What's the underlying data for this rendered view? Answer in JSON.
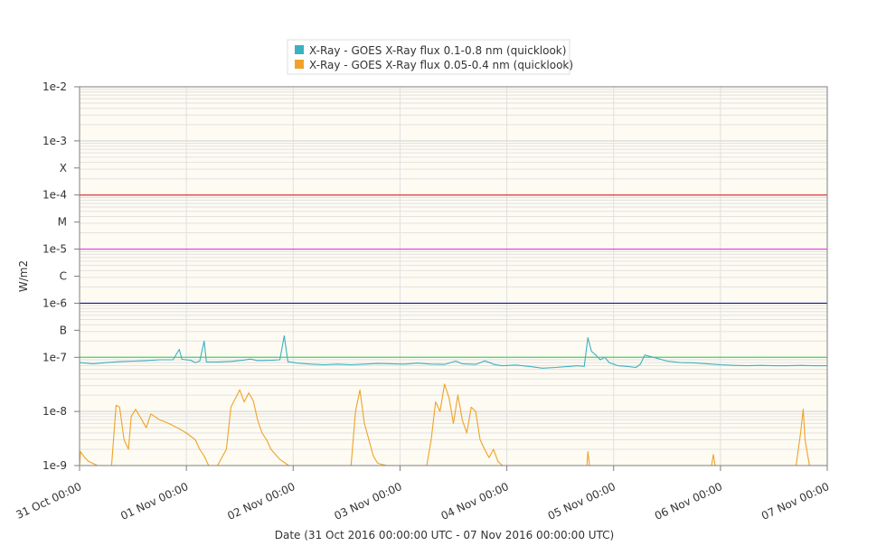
{
  "chart_data": {
    "type": "line",
    "xlabel": "Date (31 Oct 2016 00:00:00 UTC - 07 Nov 2016 00:00:00 UTC)",
    "ylabel": "W/m2",
    "y_scale": "log",
    "ylim": [
      1e-09,
      0.01
    ],
    "xlim": [
      "2016-10-31 00:00",
      "2016-11-07 00:00"
    ],
    "grid": true,
    "legend_position": "top-center",
    "plot_background": "#fdfbf2",
    "x_ticks": [
      {
        "x": "2016-10-31 00:00",
        "label": "31 Oct 00:00"
      },
      {
        "x": "2016-11-01 00:00",
        "label": "01 Nov 00:00"
      },
      {
        "x": "2016-11-02 00:00",
        "label": "02 Nov 00:00"
      },
      {
        "x": "2016-11-03 00:00",
        "label": "03 Nov 00:00"
      },
      {
        "x": "2016-11-04 00:00",
        "label": "04 Nov 00:00"
      },
      {
        "x": "2016-11-05 00:00",
        "label": "05 Nov 00:00"
      },
      {
        "x": "2016-11-06 00:00",
        "label": "06 Nov 00:00"
      },
      {
        "x": "2016-11-07 00:00",
        "label": "07 Nov 00:00"
      }
    ],
    "y_ticks": [
      {
        "y": 0.01,
        "label": "1e-2"
      },
      {
        "y": 0.001,
        "label": "1e-3"
      },
      {
        "y": 0.000316,
        "label": "X"
      },
      {
        "y": 0.0001,
        "label": "1e-4"
      },
      {
        "y": 3.16e-05,
        "label": "M"
      },
      {
        "y": 1e-05,
        "label": "1e-5"
      },
      {
        "y": 3.16e-06,
        "label": "C"
      },
      {
        "y": 1e-06,
        "label": "1e-6"
      },
      {
        "y": 3.16e-07,
        "label": "B"
      },
      {
        "y": 1e-07,
        "label": "1e-7"
      },
      {
        "y": 1e-08,
        "label": "1e-8"
      },
      {
        "y": 1e-09,
        "label": "1e-9"
      }
    ],
    "threshold_lines": [
      {
        "y": 0.0001,
        "color": "#d93a3a"
      },
      {
        "y": 1e-05,
        "color": "#e040e0"
      },
      {
        "y": 1e-06,
        "color": "#1a1a9e"
      },
      {
        "y": 1e-07,
        "color": "#49d36b"
      }
    ],
    "series": [
      {
        "name": "X-Ray - GOES X-Ray flux 0.1-0.8 nm (quicklook)",
        "color": "#3bb1c2",
        "points": [
          [
            "2016-10-31 00:00",
            8e-08
          ],
          [
            "2016-10-31 03:00",
            7.6e-08
          ],
          [
            "2016-10-31 06:00",
            8e-08
          ],
          [
            "2016-10-31 09:00",
            8.3e-08
          ],
          [
            "2016-10-31 12:00",
            8.5e-08
          ],
          [
            "2016-10-31 15:00",
            8.7e-08
          ],
          [
            "2016-10-31 18:00",
            9e-08
          ],
          [
            "2016-10-31 21:00",
            9e-08
          ],
          [
            "2016-10-31 22:24",
            1.4e-07
          ],
          [
            "2016-10-31 23:00",
            9.2e-08
          ],
          [
            "2016-11-01 01:00",
            8.8e-08
          ],
          [
            "2016-11-01 02:00",
            8e-08
          ],
          [
            "2016-11-01 03:00",
            8.5e-08
          ],
          [
            "2016-11-01 04:00",
            2e-07
          ],
          [
            "2016-11-01 04:30",
            8.2e-08
          ],
          [
            "2016-11-01 07:00",
            8.2e-08
          ],
          [
            "2016-11-01 10:00",
            8.4e-08
          ],
          [
            "2016-11-01 13:00",
            8.9e-08
          ],
          [
            "2016-11-01 14:24",
            9.3e-08
          ],
          [
            "2016-11-01 16:00",
            8.7e-08
          ],
          [
            "2016-11-01 19:00",
            8.8e-08
          ],
          [
            "2016-11-01 21:00",
            9e-08
          ],
          [
            "2016-11-01 22:00",
            2.5e-07
          ],
          [
            "2016-11-01 22:48",
            8.3e-08
          ],
          [
            "2016-11-02 01:00",
            7.8e-08
          ],
          [
            "2016-11-02 04:00",
            7.5e-08
          ],
          [
            "2016-11-02 07:00",
            7.3e-08
          ],
          [
            "2016-11-02 10:00",
            7.5e-08
          ],
          [
            "2016-11-02 13:00",
            7.3e-08
          ],
          [
            "2016-11-02 16:00",
            7.5e-08
          ],
          [
            "2016-11-02 19:00",
            7.7e-08
          ],
          [
            "2016-11-02 22:00",
            7.6e-08
          ],
          [
            "2016-11-03 01:00",
            7.5e-08
          ],
          [
            "2016-11-03 04:00",
            7.8e-08
          ],
          [
            "2016-11-03 07:00",
            7.5e-08
          ],
          [
            "2016-11-03 10:00",
            7.4e-08
          ],
          [
            "2016-11-03 12:30",
            8.5e-08
          ],
          [
            "2016-11-03 14:00",
            7.6e-08
          ],
          [
            "2016-11-03 17:00",
            7.4e-08
          ],
          [
            "2016-11-03 19:00",
            8.6e-08
          ],
          [
            "2016-11-03 20:30",
            7.8e-08
          ],
          [
            "2016-11-03 21:00",
            7.4e-08
          ],
          [
            "2016-11-03 23:00",
            7e-08
          ],
          [
            "2016-11-04 02:00",
            7.2e-08
          ],
          [
            "2016-11-04 05:00",
            6.8e-08
          ],
          [
            "2016-11-04 08:00",
            6.3e-08
          ],
          [
            "2016-11-04 11:00",
            6.5e-08
          ],
          [
            "2016-11-04 14:00",
            6.8e-08
          ],
          [
            "2016-11-04 16:00",
            7e-08
          ],
          [
            "2016-11-04 17:24",
            6.8e-08
          ],
          [
            "2016-11-04 18:12",
            2.3e-07
          ],
          [
            "2016-11-04 19:00",
            1.3e-07
          ],
          [
            "2016-11-04 20:00",
            1.1e-07
          ],
          [
            "2016-11-04 21:00",
            9e-08
          ],
          [
            "2016-11-04 22:00",
            1e-07
          ],
          [
            "2016-11-04 23:00",
            8e-08
          ],
          [
            "2016-11-05 01:00",
            7e-08
          ],
          [
            "2016-11-05 03:00",
            6.8e-08
          ],
          [
            "2016-11-05 05:00",
            6.5e-08
          ],
          [
            "2016-11-05 06:00",
            7.5e-08
          ],
          [
            "2016-11-05 07:00",
            1.1e-07
          ],
          [
            "2016-11-05 09:00",
            1e-07
          ],
          [
            "2016-11-05 12:00",
            8.5e-08
          ],
          [
            "2016-11-05 15:00",
            8e-08
          ],
          [
            "2016-11-05 18:00",
            7.9e-08
          ],
          [
            "2016-11-05 21:00",
            7.6e-08
          ],
          [
            "2016-11-06 00:00",
            7.3e-08
          ],
          [
            "2016-11-06 03:00",
            7.1e-08
          ],
          [
            "2016-11-06 06:00",
            7e-08
          ],
          [
            "2016-11-06 09:00",
            7.1e-08
          ],
          [
            "2016-11-06 12:00",
            7e-08
          ],
          [
            "2016-11-06 15:00",
            7e-08
          ],
          [
            "2016-11-06 18:00",
            7.1e-08
          ],
          [
            "2016-11-06 21:00",
            7e-08
          ],
          [
            "2016-11-07 00:00",
            7e-08
          ]
        ]
      },
      {
        "name": "X-Ray - GOES X-Ray flux 0.05-0.4 nm (quicklook)",
        "color": "#f0a228",
        "points": [
          [
            "2016-10-31 00:00",
            1e-09
          ],
          [
            "2016-10-31 00:12",
            1.8e-09
          ],
          [
            "2016-10-31 01:12",
            1.4e-09
          ],
          [
            "2016-10-31 02:00",
            1.2e-09
          ],
          [
            "2016-10-31 04:00",
            1e-09
          ],
          [
            "2016-10-31 07:12",
            1e-09
          ],
          [
            "2016-10-31 08:12",
            1.3e-08
          ],
          [
            "2016-10-31 09:00",
            1.2e-08
          ],
          [
            "2016-10-31 10:00",
            3e-09
          ],
          [
            "2016-10-31 11:00",
            2e-09
          ],
          [
            "2016-10-31 11:36",
            8e-09
          ],
          [
            "2016-10-31 12:36",
            1.1e-08
          ],
          [
            "2016-10-31 14:00",
            7e-09
          ],
          [
            "2016-10-31 15:00",
            5e-09
          ],
          [
            "2016-10-31 16:00",
            9e-09
          ],
          [
            "2016-10-31 18:00",
            7e-09
          ],
          [
            "2016-10-31 20:00",
            6e-09
          ],
          [
            "2016-10-31 22:00",
            5e-09
          ],
          [
            "2016-11-01 00:00",
            4e-09
          ],
          [
            "2016-11-01 02:00",
            3e-09
          ],
          [
            "2016-11-01 03:00",
            2e-09
          ],
          [
            "2016-11-01 04:00",
            1.5e-09
          ],
          [
            "2016-11-01 05:00",
            1e-09
          ],
          [
            "2016-11-01 07:00",
            1e-09
          ],
          [
            "2016-11-01 09:00",
            2e-09
          ],
          [
            "2016-11-01 10:00",
            1.2e-08
          ],
          [
            "2016-11-01 12:00",
            2.5e-08
          ],
          [
            "2016-11-01 13:00",
            1.5e-08
          ],
          [
            "2016-11-01 14:00",
            2.2e-08
          ],
          [
            "2016-11-01 15:00",
            1.6e-08
          ],
          [
            "2016-11-01 16:00",
            7e-09
          ],
          [
            "2016-11-01 17:00",
            4e-09
          ],
          [
            "2016-11-01 18:00",
            3e-09
          ],
          [
            "2016-11-01 19:00",
            2e-09
          ],
          [
            "2016-11-01 21:00",
            1.3e-09
          ],
          [
            "2016-11-01 23:00",
            1e-09
          ],
          [
            "2016-11-02 06:00",
            1e-09
          ],
          [
            "2016-11-02 13:00",
            1e-09
          ],
          [
            "2016-11-02 14:00",
            1e-08
          ],
          [
            "2016-11-02 15:00",
            2.5e-08
          ],
          [
            "2016-11-02 16:00",
            6e-09
          ],
          [
            "2016-11-02 17:00",
            3e-09
          ],
          [
            "2016-11-02 18:00",
            1.5e-09
          ],
          [
            "2016-11-02 19:00",
            1.1e-09
          ],
          [
            "2016-11-02 21:00",
            1e-09
          ],
          [
            "2016-11-03 06:00",
            1e-09
          ],
          [
            "2016-11-03 07:00",
            3e-09
          ],
          [
            "2016-11-03 08:00",
            1.5e-08
          ],
          [
            "2016-11-03 09:00",
            1e-08
          ],
          [
            "2016-11-03 10:00",
            3.2e-08
          ],
          [
            "2016-11-03 11:00",
            1.8e-08
          ],
          [
            "2016-11-03 12:00",
            6e-09
          ],
          [
            "2016-11-03 13:00",
            2e-08
          ],
          [
            "2016-11-03 14:00",
            7e-09
          ],
          [
            "2016-11-03 15:00",
            4e-09
          ],
          [
            "2016-11-03 16:00",
            1.2e-08
          ],
          [
            "2016-11-03 17:00",
            1e-08
          ],
          [
            "2016-11-03 18:00",
            3e-09
          ],
          [
            "2016-11-03 19:00",
            2e-09
          ],
          [
            "2016-11-03 20:00",
            1.4e-09
          ],
          [
            "2016-11-03 21:00",
            2e-09
          ],
          [
            "2016-11-03 22:00",
            1.2e-09
          ],
          [
            "2016-11-03 23:00",
            1e-09
          ],
          [
            "2016-11-04 18:00",
            1e-09
          ],
          [
            "2016-11-04 18:12",
            1.8e-09
          ],
          [
            "2016-11-04 18:36",
            1e-09
          ],
          [
            "2016-11-05 22:00",
            1e-09
          ],
          [
            "2016-11-05 22:24",
            1.6e-09
          ],
          [
            "2016-11-05 22:48",
            1e-09
          ],
          [
            "2016-11-06 17:00",
            1e-09
          ],
          [
            "2016-11-06 18:00",
            4e-09
          ],
          [
            "2016-11-06 18:36",
            1.1e-08
          ],
          [
            "2016-11-06 19:00",
            3e-09
          ],
          [
            "2016-11-06 20:00",
            1e-09
          ],
          [
            "2016-11-07 00:00",
            1e-09
          ]
        ]
      }
    ]
  }
}
